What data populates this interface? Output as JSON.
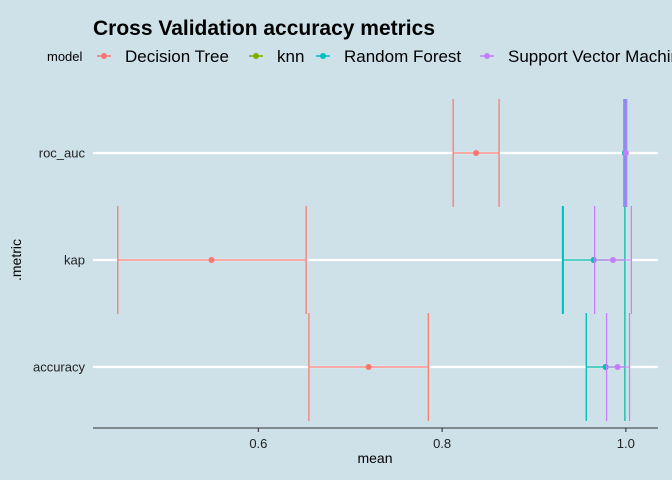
{
  "chart_data": {
    "type": "errorbar",
    "title": "Cross Validation accuracy metrics",
    "xlabel": "mean",
    "ylabel": ".metric",
    "xlim": [
      0.42,
      1.035
    ],
    "x_ticks": [
      0.6,
      0.8,
      1.0
    ],
    "x_tick_labels": [
      "0.6",
      "0.8",
      "1.0"
    ],
    "categories": [
      "accuracy",
      "kap",
      "roc_auc"
    ],
    "legend": {
      "title": "model",
      "position": "top"
    },
    "grid": {
      "horizontal_major": true,
      "vertical": false
    },
    "series": [
      {
        "name": "Decision Tree",
        "color": "#F8766D",
        "points": [
          {
            "metric": "roc_auc",
            "mean": 0.837,
            "low": 0.812,
            "high": 0.862
          },
          {
            "metric": "kap",
            "mean": 0.549,
            "low": 0.447,
            "high": 0.652
          },
          {
            "metric": "accuracy",
            "mean": 0.72,
            "low": 0.655,
            "high": 0.785
          }
        ]
      },
      {
        "name": "knn",
        "color": "#7CAE00",
        "points": [
          {
            "metric": "roc_auc",
            "mean": 0.999,
            "low": 0.998,
            "high": 1.0
          },
          {
            "metric": "kap",
            "mean": 0.965,
            "low": 0.932,
            "high": 0.999
          },
          {
            "metric": "accuracy",
            "mean": 0.978,
            "low": 0.957,
            "high": 0.999
          }
        ]
      },
      {
        "name": "Random Forest",
        "color": "#00BFC4",
        "points": [
          {
            "metric": "roc_auc",
            "mean": 0.999,
            "low": 0.998,
            "high": 1.0
          },
          {
            "metric": "kap",
            "mean": 0.965,
            "low": 0.931,
            "high": 0.999
          },
          {
            "metric": "accuracy",
            "mean": 0.978,
            "low": 0.957,
            "high": 0.999
          }
        ]
      },
      {
        "name": "Support Vector Machine",
        "color": "#C77CFF",
        "points": [
          {
            "metric": "roc_auc",
            "mean": 1.0,
            "low": 0.999,
            "high": 1.001
          },
          {
            "metric": "kap",
            "mean": 0.986,
            "low": 0.966,
            "high": 1.006
          },
          {
            "metric": "accuracy",
            "mean": 0.991,
            "low": 0.979,
            "high": 1.004
          }
        ]
      }
    ]
  }
}
